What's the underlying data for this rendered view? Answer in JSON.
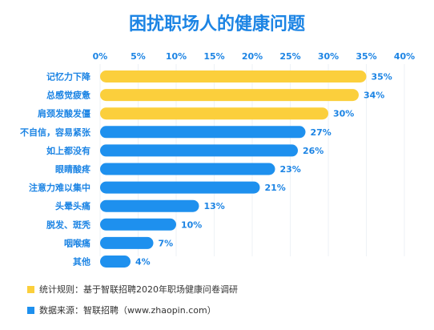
{
  "chart_data": {
    "type": "bar",
    "orientation": "horizontal",
    "title": "困扰职场人的健康问题",
    "xlim": [
      0,
      40
    ],
    "x_ticks": [
      "0%",
      "5%",
      "10%",
      "15%",
      "20%",
      "25%",
      "30%",
      "35%",
      "40%"
    ],
    "categories": [
      "记忆力下降",
      "总感觉疲惫",
      "肩颈发酸发僵",
      "不自信，容易紧张",
      "如上都没有",
      "眼睛酸疼",
      "注意力难以集中",
      "头晕头痛",
      "脱发、斑秃",
      "咽喉痛",
      "其他"
    ],
    "values": [
      35,
      34,
      30,
      27,
      26,
      23,
      21,
      13,
      10,
      7,
      4
    ],
    "value_labels": [
      "35%",
      "34%",
      "30%",
      "27%",
      "26%",
      "23%",
      "21%",
      "13%",
      "10%",
      "7%",
      "4%"
    ],
    "bar_colors": [
      "#fbcf3c",
      "#fbcf3c",
      "#fbcf3c",
      "#1e90ee",
      "#1e90ee",
      "#1e90ee",
      "#1e90ee",
      "#1e90ee",
      "#1e90ee",
      "#1e90ee",
      "#1e90ee"
    ],
    "grid": true,
    "legend": "none"
  },
  "colors": {
    "title": "#1c84e4",
    "highlight": "#fbcf3c",
    "primary": "#1e90ee"
  },
  "footnotes": [
    {
      "text": "统计规则：基于智联招聘2020年职场健康问卷调研",
      "color": "#fbcf3c"
    },
    {
      "text": "数据来源：智联招聘（www.zhaopin.com）",
      "color": "#1e90ee"
    }
  ]
}
